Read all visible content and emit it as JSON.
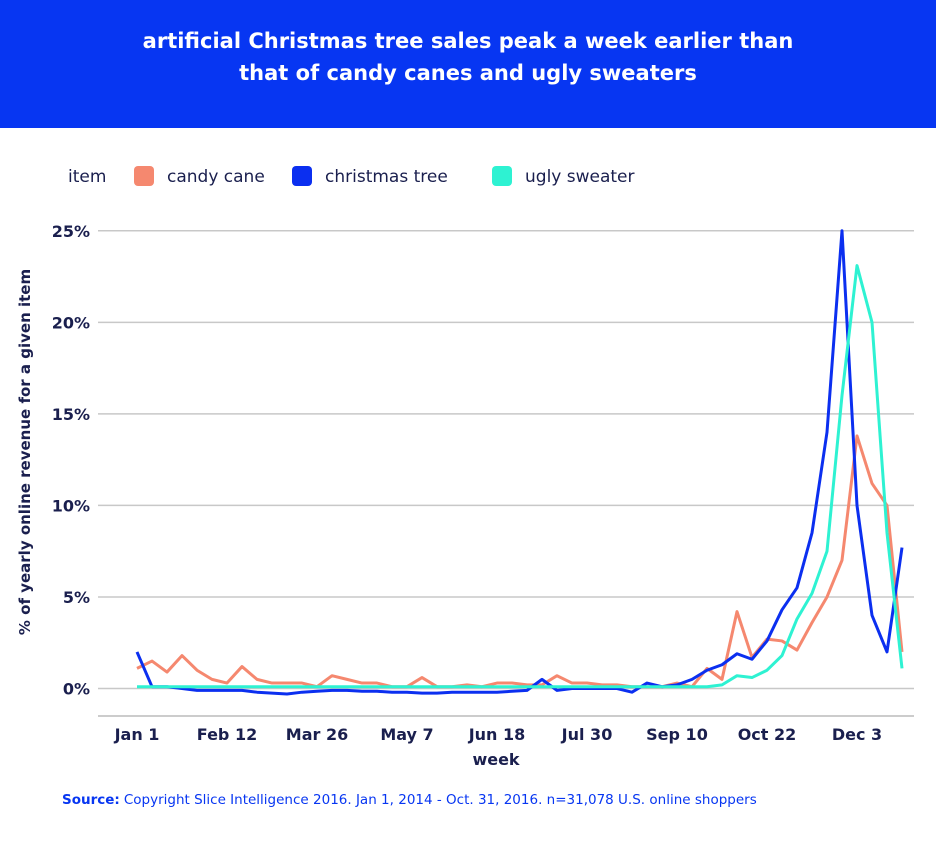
{
  "chart_data": {
    "type": "line",
    "title": [
      "artificial Christmas tree sales peak a week earlier than",
      "that of candy canes and ugly sweaters"
    ],
    "legend_title": "item",
    "y_label": "% of yearly online revenue for a given item",
    "x_label": "week",
    "categories": [
      "Jan 1",
      null,
      null,
      null,
      null,
      null,
      "Feb 12",
      null,
      null,
      null,
      null,
      null,
      "Mar 26",
      null,
      null,
      null,
      null,
      null,
      "May 7",
      null,
      null,
      null,
      null,
      null,
      "Jun 18",
      null,
      null,
      null,
      null,
      null,
      "Jul 30",
      null,
      null,
      null,
      null,
      null,
      "Sep 10",
      null,
      null,
      null,
      null,
      null,
      "Oct 22",
      null,
      null,
      null,
      null,
      null,
      "Dec 3",
      null,
      null,
      null
    ],
    "series": [
      {
        "name": "candy cane",
        "color": "#f5886f",
        "values": [
          1.1,
          1.5,
          0.9,
          1.8,
          1.0,
          0.5,
          0.3,
          1.2,
          0.5,
          0.3,
          0.3,
          0.3,
          0.1,
          0.7,
          0.5,
          0.3,
          0.3,
          0.1,
          0.1,
          0.6,
          0.1,
          0.1,
          0.2,
          0.1,
          0.3,
          0.3,
          0.2,
          0.2,
          0.7,
          0.3,
          0.3,
          0.2,
          0.2,
          0.1,
          0.1,
          0.1,
          0.3,
          0.1,
          1.1,
          0.5,
          4.2,
          1.7,
          2.7,
          2.6,
          2.1,
          3.6,
          5.0,
          7.0,
          13.8,
          11.2,
          10.0,
          2.0
        ]
      },
      {
        "name": "christmas tree",
        "color": "#0b2ff0",
        "values": [
          2.0,
          0.1,
          0.1,
          0.0,
          -0.1,
          -0.1,
          -0.1,
          -0.1,
          -0.2,
          -0.25,
          -0.3,
          -0.2,
          -0.15,
          -0.1,
          -0.1,
          -0.15,
          -0.15,
          -0.2,
          -0.2,
          -0.25,
          -0.25,
          -0.2,
          -0.2,
          -0.2,
          -0.2,
          -0.15,
          -0.1,
          0.5,
          -0.1,
          0.0,
          0.0,
          0.0,
          0.0,
          -0.2,
          0.3,
          0.1,
          0.2,
          0.5,
          1.0,
          1.3,
          1.9,
          1.6,
          2.6,
          4.3,
          5.5,
          8.5,
          14.0,
          25.0,
          10.0,
          4.0,
          2.0,
          7.7
        ]
      },
      {
        "name": "ugly sweater",
        "color": "#2ef2d2",
        "values": [
          0.1,
          0.1,
          0.1,
          0.1,
          0.1,
          0.1,
          0.1,
          0.1,
          0.1,
          0.1,
          0.1,
          0.1,
          0.1,
          0.1,
          0.1,
          0.1,
          0.1,
          0.1,
          0.1,
          0.1,
          0.1,
          0.1,
          0.1,
          0.1,
          0.1,
          0.1,
          0.1,
          0.1,
          0.1,
          0.1,
          0.1,
          0.1,
          0.1,
          0.1,
          0.1,
          0.1,
          0.1,
          0.1,
          0.1,
          0.2,
          0.7,
          0.6,
          1.0,
          1.8,
          3.8,
          5.2,
          7.5,
          16.0,
          23.1,
          20.0,
          8.5,
          1.1
        ]
      }
    ],
    "ylim": [
      -1.5,
      27.5
    ],
    "yticks": [
      {
        "value": 0,
        "label": "0%"
      },
      {
        "value": 5,
        "label": "5%"
      },
      {
        "value": 10,
        "label": "10%"
      },
      {
        "value": 15,
        "label": "15%"
      },
      {
        "value": 20,
        "label": "20%"
      },
      {
        "value": 25,
        "label": "25%"
      }
    ],
    "grid": true,
    "source_label": "Source:",
    "source_text": "Copyright Slice Intelligence 2016. Jan 1, 2014 - Oct. 31, 2016. n=31,078 U.S. online shoppers"
  }
}
